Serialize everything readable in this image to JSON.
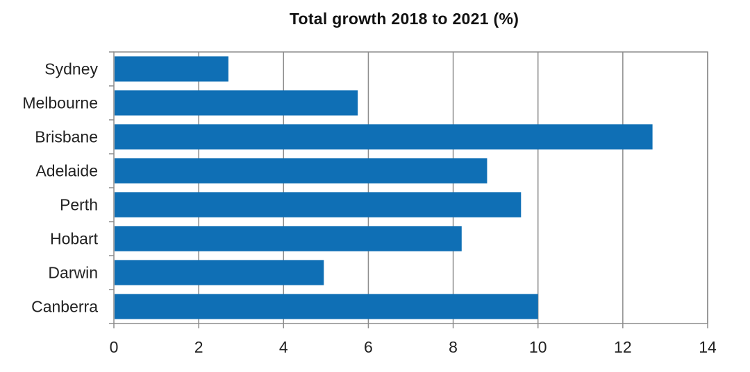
{
  "chart_data": {
    "type": "bar",
    "orientation": "horizontal",
    "title": "Total growth 2018 to 2021 (%)",
    "xlabel": "",
    "ylabel": "",
    "categories": [
      "Sydney",
      "Melbourne",
      "Brisbane",
      "Adelaide",
      "Perth",
      "Hobart",
      "Darwin",
      "Canberra"
    ],
    "values": [
      2.7,
      5.75,
      12.7,
      8.8,
      9.6,
      8.2,
      4.95,
      10.0
    ],
    "xlim": [
      0,
      14
    ],
    "xticks": [
      "0",
      "2",
      "4",
      "6",
      "8",
      "10",
      "12",
      "14"
    ],
    "grid": "vertical",
    "legend": "none",
    "bar_color": "#0f6fb5",
    "grid_color": "#8c8c8c"
  }
}
